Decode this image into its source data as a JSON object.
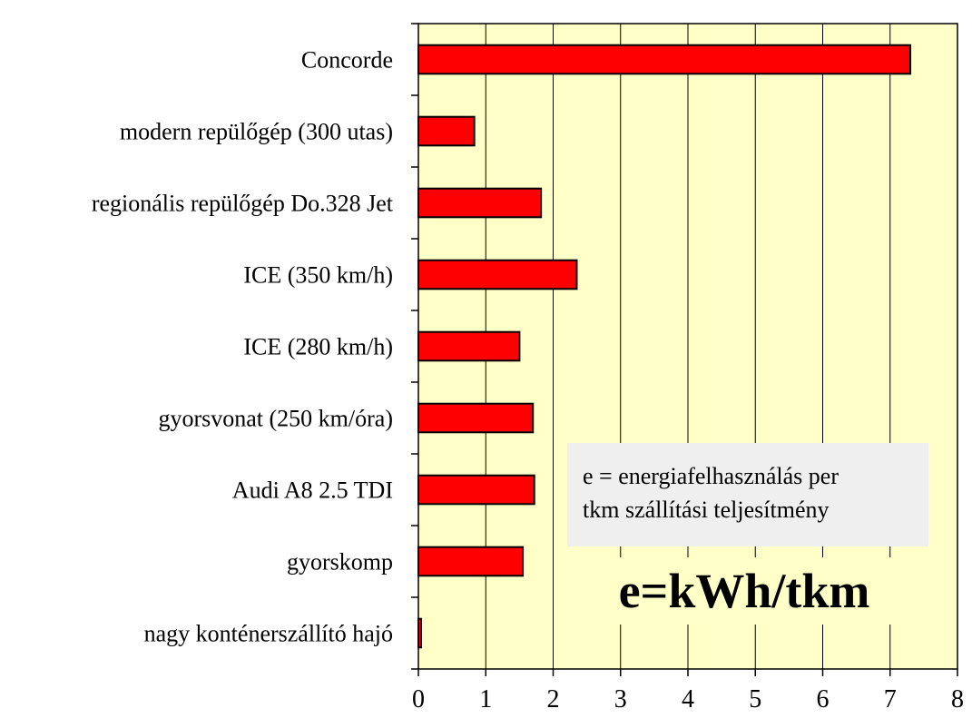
{
  "chart_data": {
    "type": "bar",
    "orientation": "horizontal",
    "categories": [
      "Concorde",
      "modern repülőgép (300 utas)",
      "regionális repülőgép Do.328 Jet",
      "ICE (350 km/h)",
      "ICE (280 km/h)",
      "gyorsvonat (250 km/óra)",
      "Audi A8 2.5 TDI",
      "gyorskomp",
      "nagy konténerszállító hajó"
    ],
    "values": [
      7.3,
      0.83,
      1.82,
      2.35,
      1.5,
      1.7,
      1.72,
      1.55,
      0.04
    ],
    "xlim": [
      0,
      8
    ],
    "xticks": [
      "0",
      "1",
      "2",
      "3",
      "4",
      "5",
      "6",
      "7",
      "8"
    ],
    "grid": "vertical",
    "bar_color": "#ff0000",
    "plot_background": "#ffffc8",
    "annotations": {
      "note_line1": "e = energiafelhasználás per",
      "note_line2": "tkm szállítási teljesítmény",
      "unit": "e=kWh/tkm"
    }
  }
}
